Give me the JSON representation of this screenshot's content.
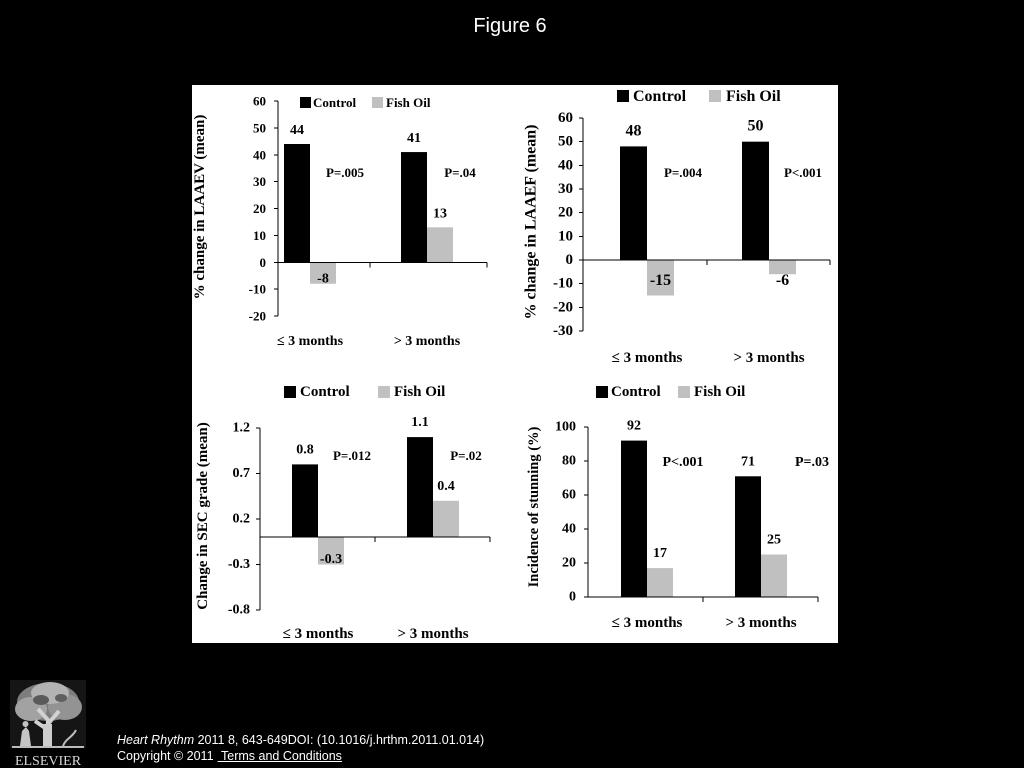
{
  "page": {
    "title": "Figure 6"
  },
  "theme": {
    "background": "#000000",
    "panel": "#ffffff",
    "text": "#ffffff"
  },
  "chart_data": [
    {
      "type": "bar",
      "categories": [
        "≤ 3 months",
        "> 3 months"
      ],
      "series": [
        {
          "name": "Control",
          "color": "#000000",
          "values": [
            44,
            41
          ]
        },
        {
          "name": "Fish Oil",
          "color": "#c0c0c0",
          "values": [
            -8,
            13
          ]
        }
      ],
      "p_values": [
        "P=.005",
        "P=.04"
      ],
      "ylabel": "% change in LAAEV (mean)",
      "ylim": [
        -20,
        60
      ],
      "yticks": [
        60,
        50,
        40,
        30,
        20,
        10,
        0,
        -10,
        -20
      ],
      "grid": false,
      "legend": "top"
    },
    {
      "type": "bar",
      "categories": [
        "≤ 3 months",
        "> 3 months"
      ],
      "series": [
        {
          "name": "Control",
          "color": "#000000",
          "values": [
            48,
            50
          ]
        },
        {
          "name": "Fish Oil",
          "color": "#c0c0c0",
          "values": [
            -15,
            -6
          ]
        }
      ],
      "p_values": [
        "P=.004",
        "P<.001"
      ],
      "ylabel": "% change in LAAEF (mean)",
      "ylim": [
        -30,
        60
      ],
      "yticks": [
        60,
        50,
        40,
        30,
        20,
        10,
        0,
        -10,
        -20,
        -30
      ],
      "grid": false,
      "legend": "top"
    },
    {
      "type": "bar",
      "categories": [
        "≤ 3 months",
        "> 3 months"
      ],
      "series": [
        {
          "name": "Control",
          "color": "#000000",
          "values": [
            0.8,
            1.1
          ]
        },
        {
          "name": "Fish Oil",
          "color": "#c0c0c0",
          "values": [
            -0.3,
            0.4
          ]
        }
      ],
      "p_values": [
        "P=.012",
        "P=.02"
      ],
      "ylabel": "Change in SEC grade (mean)",
      "ylim": [
        -0.8,
        1.2
      ],
      "yticks": [
        1.2,
        0.7,
        0.2,
        -0.3,
        -0.8
      ],
      "grid": false,
      "legend": "top"
    },
    {
      "type": "bar",
      "categories": [
        "≤ 3 months",
        "> 3 months"
      ],
      "series": [
        {
          "name": "Control",
          "color": "#000000",
          "values": [
            92,
            71
          ]
        },
        {
          "name": "Fish Oil",
          "color": "#c0c0c0",
          "values": [
            17,
            25
          ]
        }
      ],
      "p_values": [
        "P<.001",
        "P=.03"
      ],
      "ylabel": "Incidence of stunning (%)",
      "ylim": [
        0,
        100
      ],
      "yticks": [
        100,
        80,
        60,
        40,
        20,
        0
      ],
      "grid": false,
      "legend": "top"
    }
  ],
  "footer": {
    "publisher_logo": {
      "icon": "elsevier-tree-icon",
      "wordmark": "ELSEVIER"
    },
    "journal": "Heart Rhythm",
    "citation": "2011 8, 643-649DOI: (10.1016/j.hrthm.2011.01.014)",
    "copyright": "Copyright © 2011",
    "terms_link": "Terms and Conditions"
  }
}
